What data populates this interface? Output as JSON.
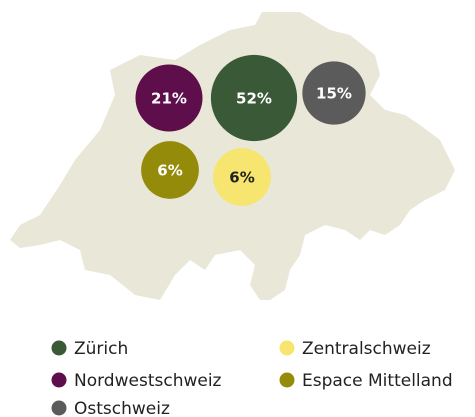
{
  "chart_data": {
    "type": "bubble",
    "categories": [
      "Zürich",
      "Zentralschweiz",
      "Nordwestschweiz",
      "Espace Mittelland",
      "Ostschweiz"
    ],
    "values": [
      52,
      6,
      21,
      6,
      15
    ],
    "value_labels": [
      "52%",
      "6%",
      "21%",
      "6%",
      "15%"
    ],
    "colors": [
      "#3a5a37",
      "#f6e56e",
      "#5e0f4b",
      "#958b0b",
      "#5b5b5b"
    ]
  }
}
